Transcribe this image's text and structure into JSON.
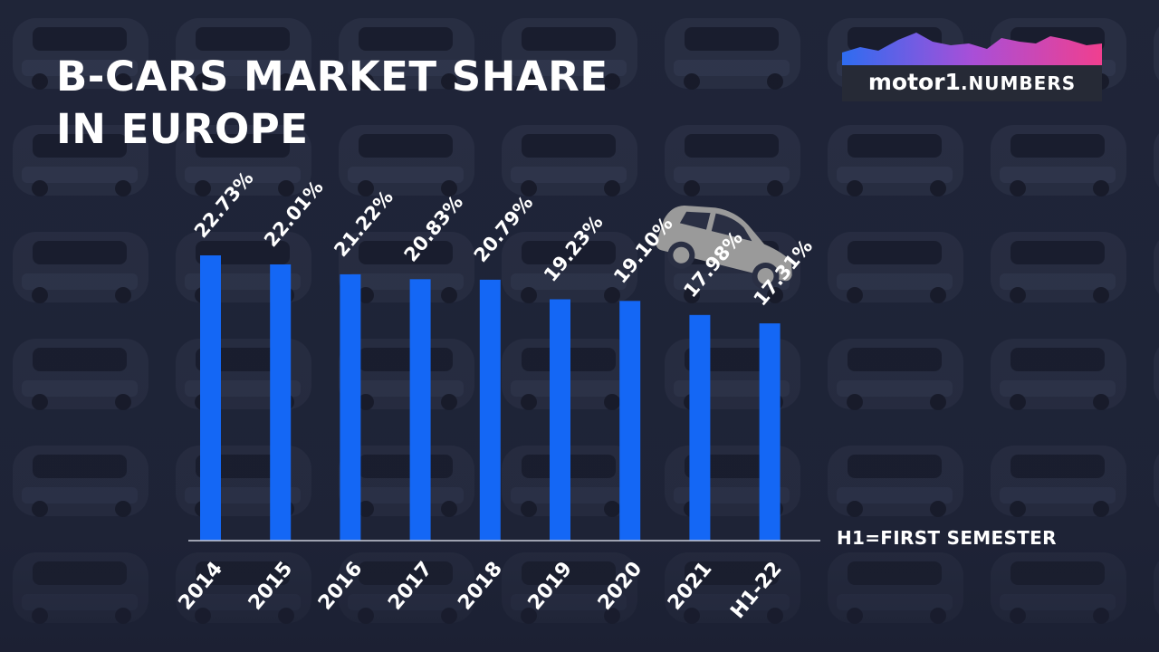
{
  "header": {
    "title_line1": "B-CARS MARKET SHARE",
    "title_line2": "IN EUROPE"
  },
  "logo": {
    "word": "motor",
    "numeral": "1",
    "suffix": ".NUMBERS",
    "icon": "motor1-numbers-logo"
  },
  "note": "H1=FIRST SEMESTER",
  "decoration": {
    "icon": "hatchback-car-icon",
    "car_color": "#9a9a9a",
    "background_color": "#1f2438"
  },
  "chart_data": {
    "type": "bar",
    "categories": [
      "2014",
      "2015",
      "2016",
      "2017",
      "2018",
      "2019",
      "2020",
      "2021",
      "H1-22"
    ],
    "values": [
      22.73,
      22.01,
      21.22,
      20.83,
      20.79,
      19.23,
      19.1,
      17.98,
      17.31
    ],
    "data_labels": [
      "22.73%",
      "22.01%",
      "21.22%",
      "20.83%",
      "20.79%",
      "19.23%",
      "19.10%",
      "17.98%",
      "17.31%"
    ],
    "title": "B-CARS MARKET SHARE IN EUROPE",
    "xlabel": "",
    "ylabel": "",
    "bar_color": "#1467f5",
    "grid": false,
    "legend": "none"
  }
}
